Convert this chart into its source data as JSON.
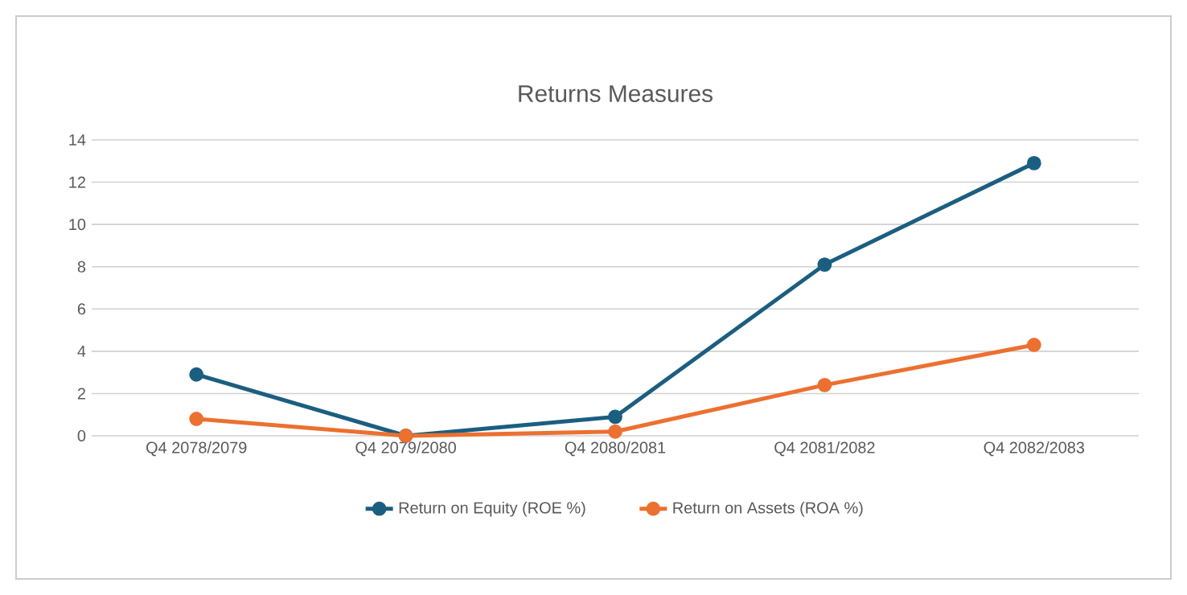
{
  "chart_data": {
    "type": "line",
    "title": "Returns Measures",
    "categories": [
      "Q4 2078/2079",
      "Q4 2079/2080",
      "Q4 2080/2081",
      "Q4 2081/2082",
      "Q4 2082/2083"
    ],
    "series": [
      {
        "name": "Return on Equity (ROE %)",
        "color": "#1b5e80",
        "values": [
          2.9,
          0,
          0.9,
          8.1,
          12.9
        ]
      },
      {
        "name": "Return on Assets (ROA %)",
        "color": "#ec7030",
        "values": [
          0.8,
          0,
          0.2,
          2.4,
          4.3
        ]
      }
    ],
    "ylim": [
      0,
      14
    ],
    "yticks": [
      0,
      2,
      4,
      6,
      8,
      10,
      12,
      14
    ],
    "grid": "y",
    "legend": "bottom",
    "marker": "circle",
    "line_style": "solid"
  }
}
